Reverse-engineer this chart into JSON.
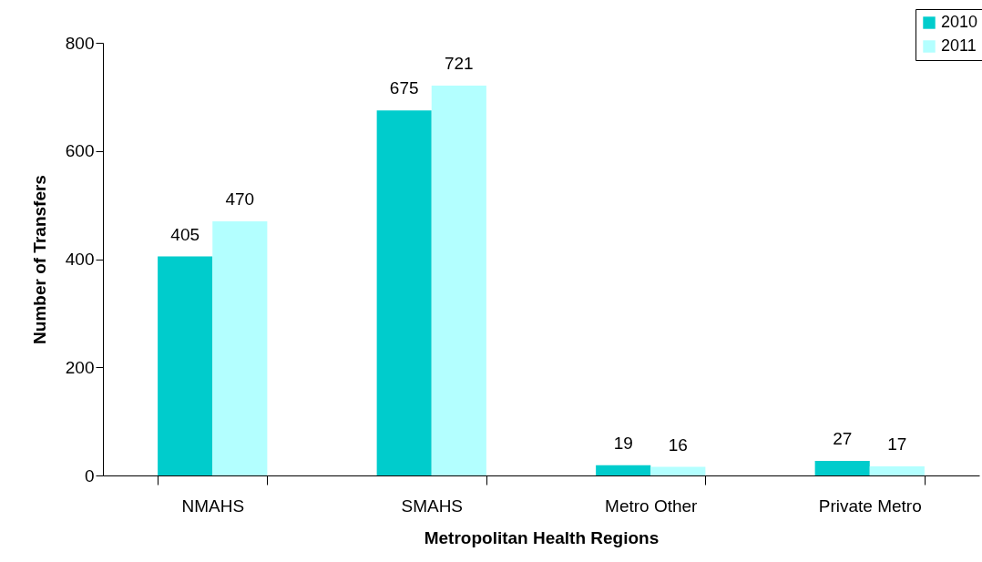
{
  "chart_data": {
    "type": "bar",
    "xlabel": "Metropolitan Health Regions",
    "ylabel": "Number of Transfers",
    "categories": [
      "NMAHS",
      "SMAHS",
      "Metro Other",
      "Private Metro"
    ],
    "series": [
      {
        "name": "2010",
        "color": "#00cccc",
        "values": [
          405,
          675,
          19,
          27
        ]
      },
      {
        "name": "2011",
        "color": "#b3ffff",
        "values": [
          470,
          721,
          16,
          17
        ]
      }
    ],
    "ylim": [
      0,
      800
    ],
    "yticks": [
      0,
      200,
      400,
      600,
      800
    ],
    "grid": false,
    "legend": "top right",
    "data_labels": true
  }
}
